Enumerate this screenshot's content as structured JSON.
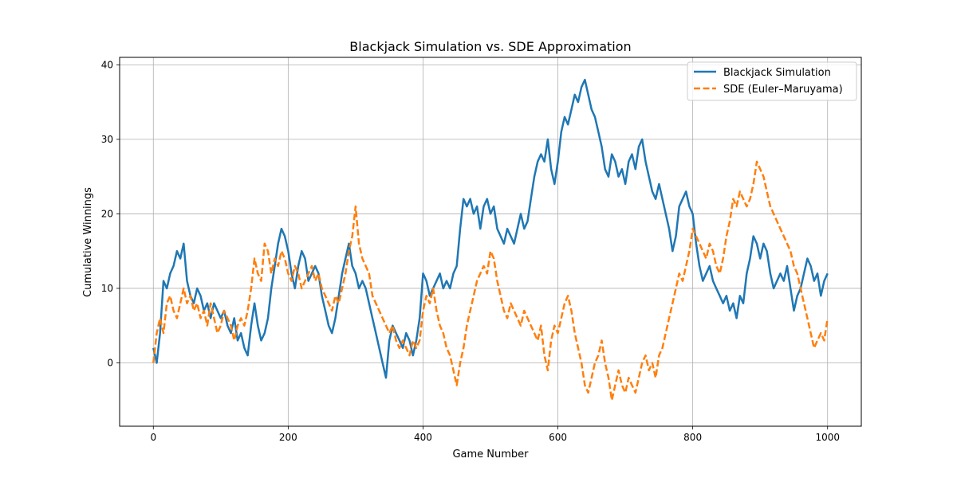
{
  "chart_data": {
    "type": "line",
    "title": "Blackjack Simulation vs. SDE Approximation",
    "xlabel": "Game Number",
    "ylabel": "Cumulative Winnings",
    "xlim": [
      -50,
      1050
    ],
    "ylim": [
      -8.5,
      41
    ],
    "xticks": [
      0,
      200,
      400,
      600,
      800,
      1000
    ],
    "yticks": [
      0,
      10,
      20,
      30,
      40
    ],
    "grid": true,
    "legend_position": "top-right",
    "series": [
      {
        "name": "Blackjack Simulation",
        "color": "#1f77b4",
        "style": "solid",
        "x": [
          0,
          5,
          10,
          15,
          20,
          25,
          30,
          35,
          40,
          45,
          50,
          55,
          60,
          65,
          70,
          75,
          80,
          85,
          90,
          95,
          100,
          105,
          110,
          115,
          120,
          125,
          130,
          135,
          140,
          145,
          150,
          155,
          160,
          165,
          170,
          175,
          180,
          185,
          190,
          195,
          200,
          205,
          210,
          215,
          220,
          225,
          230,
          235,
          240,
          245,
          250,
          255,
          260,
          265,
          270,
          275,
          280,
          285,
          290,
          295,
          300,
          305,
          310,
          315,
          320,
          325,
          330,
          335,
          340,
          345,
          350,
          355,
          360,
          365,
          370,
          375,
          380,
          385,
          390,
          395,
          400,
          405,
          410,
          415,
          420,
          425,
          430,
          435,
          440,
          445,
          450,
          455,
          460,
          465,
          470,
          475,
          480,
          485,
          490,
          495,
          500,
          505,
          510,
          515,
          520,
          525,
          530,
          535,
          540,
          545,
          550,
          555,
          560,
          565,
          570,
          575,
          580,
          585,
          590,
          595,
          600,
          605,
          610,
          615,
          620,
          625,
          630,
          635,
          640,
          645,
          650,
          655,
          660,
          665,
          670,
          675,
          680,
          685,
          690,
          695,
          700,
          705,
          710,
          715,
          720,
          725,
          730,
          735,
          740,
          745,
          750,
          755,
          760,
          765,
          770,
          775,
          780,
          785,
          790,
          795,
          800,
          805,
          810,
          815,
          820,
          825,
          830,
          835,
          840,
          845,
          850,
          855,
          860,
          865,
          870,
          875,
          880,
          885,
          890,
          895,
          900,
          905,
          910,
          915,
          920,
          925,
          930,
          935,
          940,
          945,
          950,
          955,
          960,
          965,
          970,
          975,
          980,
          985,
          990,
          995,
          1000
        ],
        "values": [
          2,
          0,
          4,
          11,
          10,
          12,
          13,
          15,
          14,
          16,
          11,
          9,
          8,
          10,
          9,
          7,
          8,
          6,
          8,
          7,
          6,
          7,
          5,
          4,
          6,
          3,
          4,
          2,
          1,
          5,
          8,
          5,
          3,
          4,
          6,
          10,
          13,
          16,
          18,
          17,
          15,
          12,
          10,
          13,
          15,
          14,
          11,
          12,
          13,
          12,
          9,
          7,
          5,
          4,
          6,
          9,
          12,
          14,
          16,
          13,
          12,
          10,
          11,
          10,
          8,
          6,
          4,
          2,
          0,
          -2,
          3,
          5,
          4,
          3,
          2,
          4,
          3,
          1,
          3,
          6,
          12,
          11,
          9,
          10,
          11,
          12,
          10,
          11,
          10,
          12,
          13,
          18,
          22,
          21,
          22,
          20,
          21,
          18,
          21,
          22,
          20,
          21,
          18,
          17,
          16,
          18,
          17,
          16,
          18,
          20,
          18,
          19,
          22,
          25,
          27,
          28,
          27,
          30,
          26,
          24,
          27,
          31,
          33,
          32,
          34,
          36,
          35,
          37,
          38,
          36,
          34,
          33,
          31,
          29,
          26,
          25,
          28,
          27,
          25,
          26,
          24,
          27,
          28,
          26,
          29,
          30,
          27,
          25,
          23,
          22,
          24,
          22,
          20,
          18,
          15,
          17,
          21,
          22,
          23,
          21,
          20,
          16,
          13,
          11,
          12,
          13,
          11,
          10,
          9,
          8,
          9,
          7,
          8,
          6,
          9,
          8,
          12,
          14,
          17,
          16,
          14,
          16,
          15,
          12,
          10,
          11,
          12,
          11,
          13,
          10,
          7,
          9,
          10,
          12,
          14,
          13,
          11,
          12,
          9,
          11,
          12
        ]
      },
      {
        "name": "SDE (Euler–Maruyama)",
        "color": "#ff7f0e",
        "style": "dashed",
        "x": [
          0,
          5,
          10,
          15,
          20,
          25,
          30,
          35,
          40,
          45,
          50,
          55,
          60,
          65,
          70,
          75,
          80,
          85,
          90,
          95,
          100,
          105,
          110,
          115,
          120,
          125,
          130,
          135,
          140,
          145,
          150,
          155,
          160,
          165,
          170,
          175,
          180,
          185,
          190,
          195,
          200,
          205,
          210,
          215,
          220,
          225,
          230,
          235,
          240,
          245,
          250,
          255,
          260,
          265,
          270,
          275,
          280,
          285,
          290,
          295,
          300,
          305,
          310,
          315,
          320,
          325,
          330,
          335,
          340,
          345,
          350,
          355,
          360,
          365,
          370,
          375,
          380,
          385,
          390,
          395,
          400,
          405,
          410,
          415,
          420,
          425,
          430,
          435,
          440,
          445,
          450,
          455,
          460,
          465,
          470,
          475,
          480,
          485,
          490,
          495,
          500,
          505,
          510,
          515,
          520,
          525,
          530,
          535,
          540,
          545,
          550,
          555,
          560,
          565,
          570,
          575,
          580,
          585,
          590,
          595,
          600,
          605,
          610,
          615,
          620,
          625,
          630,
          635,
          640,
          645,
          650,
          655,
          660,
          665,
          670,
          675,
          680,
          685,
          690,
          695,
          700,
          705,
          710,
          715,
          720,
          725,
          730,
          735,
          740,
          745,
          750,
          755,
          760,
          765,
          770,
          775,
          780,
          785,
          790,
          795,
          800,
          805,
          810,
          815,
          820,
          825,
          830,
          835,
          840,
          845,
          850,
          855,
          860,
          865,
          870,
          875,
          880,
          885,
          890,
          895,
          900,
          905,
          910,
          915,
          920,
          925,
          930,
          935,
          940,
          945,
          950,
          955,
          960,
          965,
          970,
          975,
          980,
          985,
          990,
          995,
          1000
        ],
        "values": [
          0,
          4,
          6,
          4,
          8,
          9,
          7,
          6,
          8,
          10,
          8,
          9,
          7,
          8,
          6,
          7,
          5,
          8,
          6,
          4,
          5,
          7,
          6,
          5,
          3,
          5,
          6,
          5,
          7,
          10,
          14,
          12,
          11,
          16,
          15,
          12,
          14,
          13,
          15,
          14,
          12,
          11,
          13,
          12,
          10,
          11,
          12,
          13,
          11,
          12,
          10,
          9,
          8,
          7,
          9,
          8,
          10,
          12,
          15,
          17,
          21,
          16,
          14,
          13,
          12,
          9,
          8,
          7,
          6,
          5,
          4,
          5,
          3,
          2,
          3,
          2,
          1,
          3,
          2,
          3,
          7,
          9,
          8,
          10,
          7,
          5,
          4,
          2,
          1,
          -1,
          -3,
          0,
          2,
          5,
          7,
          9,
          11,
          12,
          13,
          12,
          15,
          14,
          11,
          9,
          7,
          6,
          8,
          7,
          6,
          5,
          7,
          6,
          5,
          4,
          3,
          5,
          1,
          -1,
          3,
          5,
          4,
          6,
          8,
          9,
          7,
          4,
          2,
          0,
          -3,
          -4,
          -2,
          0,
          1,
          3,
          0,
          -2,
          -5,
          -3,
          -1,
          -3,
          -4,
          -2,
          -3,
          -4,
          -2,
          0,
          1,
          -1,
          0,
          -2,
          1,
          2,
          4,
          6,
          8,
          10,
          12,
          11,
          13,
          15,
          18,
          17,
          16,
          15,
          14,
          16,
          15,
          13,
          12,
          14,
          17,
          19,
          22,
          21,
          23,
          22,
          21,
          22,
          24,
          27,
          26,
          25,
          23,
          21,
          20,
          19,
          18,
          17,
          16,
          15,
          13,
          12,
          10,
          8,
          6,
          4,
          2,
          3,
          4,
          3,
          6
        ]
      }
    ]
  }
}
